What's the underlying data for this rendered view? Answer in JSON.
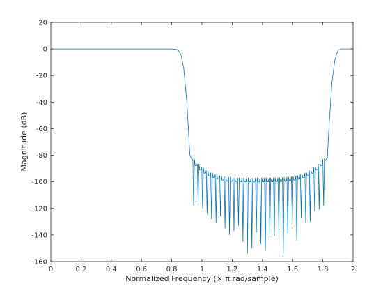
{
  "chart_data": {
    "type": "line",
    "title": "",
    "xlabel": "Normalized Frequency (× π rad/sample)",
    "ylabel": "Magnitude (dB)",
    "xlim": [
      0,
      2
    ],
    "ylim": [
      -160,
      20
    ],
    "xticks": [
      "0",
      "0.2",
      "0.4",
      "0.6",
      "0.8",
      "1",
      "1.2",
      "1.4",
      "1.6",
      "1.8",
      "2"
    ],
    "yticks": [
      "20",
      "0",
      "-20",
      "-40",
      "-60",
      "-80",
      "-100",
      "-120",
      "-140",
      "-160"
    ],
    "grid": false,
    "line_color": "#0072BD",
    "series": [
      {
        "x": [
          0,
          0.8,
          0.84,
          0.86,
          0.88,
          0.9,
          0.91,
          0.92,
          0.93,
          1.83,
          1.84,
          1.86,
          1.88,
          1.9,
          1.92,
          2
        ],
        "y": [
          0,
          0,
          -0.5,
          -4,
          -15,
          -40,
          -60,
          -80,
          -82,
          -82,
          -60,
          -25,
          -8,
          -1,
          0,
          0
        ],
        "stopband": {
          "x_start": 0.93,
          "x_end": 1.82,
          "envelope_edge_db": -80,
          "envelope_center_db": -96,
          "nulls_db": [
            -118,
            -115,
            -120,
            -124,
            -128,
            -131,
            -126,
            -135,
            -140,
            -137,
            -133,
            -145,
            -154,
            -150,
            -138,
            -147,
            -152,
            -142,
            -141,
            -136,
            -154,
            -139,
            -132,
            -144,
            -127,
            -131,
            -130,
            -122,
            -121,
            -118
          ]
        }
      }
    ]
  }
}
